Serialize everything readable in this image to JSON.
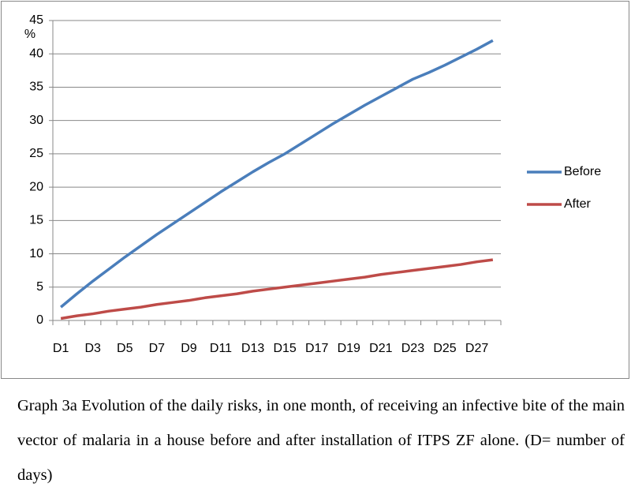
{
  "chart_data": {
    "type": "line",
    "y_label": "%",
    "categories": [
      "D1",
      null,
      "D3",
      null,
      "D5",
      null,
      "D7",
      null,
      "D9",
      null,
      "D11",
      null,
      "D13",
      null,
      "D15",
      null,
      "D17",
      null,
      "D19",
      null,
      "D21",
      null,
      "D23",
      null,
      "D25",
      null,
      "D27",
      null
    ],
    "series": [
      {
        "name": "Before",
        "color": "#4a7ebb",
        "values": [
          2.0,
          4.0,
          5.9,
          7.7,
          9.5,
          11.2,
          12.9,
          14.5,
          16.1,
          17.7,
          19.3,
          20.8,
          22.3,
          23.7,
          25.0,
          26.5,
          28.0,
          29.5,
          30.9,
          32.3,
          33.6,
          34.9,
          36.2,
          37.2,
          38.3,
          39.5,
          40.7,
          42.0
        ]
      },
      {
        "name": "After",
        "color": "#be4b48",
        "values": [
          0.3,
          0.7,
          1.0,
          1.4,
          1.7,
          2.0,
          2.4,
          2.7,
          3.0,
          3.4,
          3.7,
          4.0,
          4.4,
          4.7,
          5.0,
          5.3,
          5.6,
          5.9,
          6.2,
          6.5,
          6.9,
          7.2,
          7.5,
          7.8,
          8.1,
          8.4,
          8.8,
          9.1
        ]
      }
    ],
    "ylim": [
      0,
      45
    ],
    "yticks": [
      0,
      5,
      10,
      15,
      20,
      25,
      30,
      35,
      40,
      45
    ],
    "grid": true,
    "legend": "right",
    "caption": "Graph 3a Evolution of the daily risks, in one month, of receiving an infective bite of the main vector of malaria in a house before and after installation of ITPS ZF alone. (D= number of days)"
  }
}
